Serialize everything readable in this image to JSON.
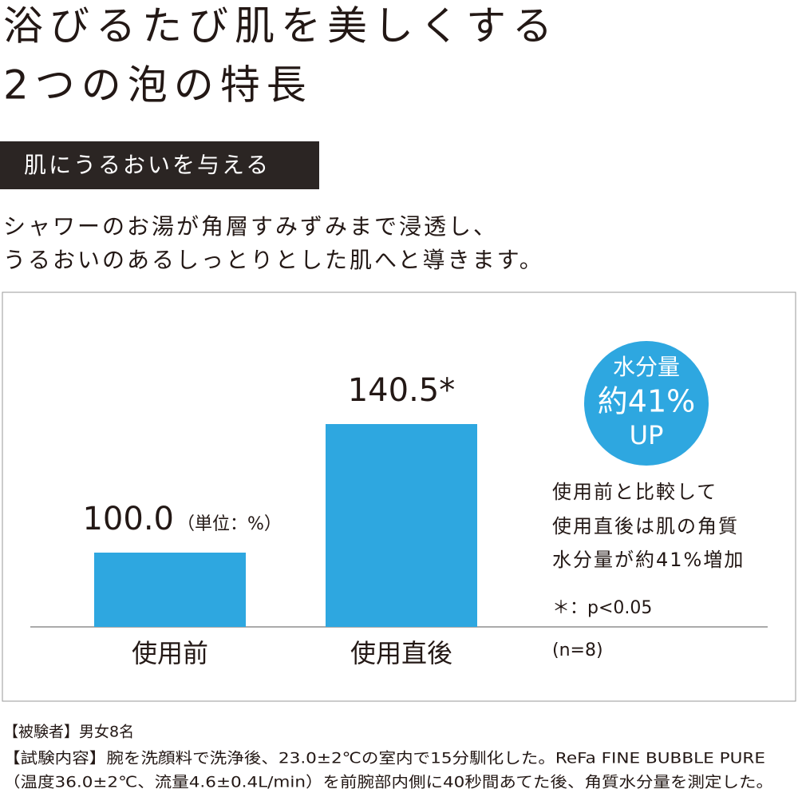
{
  "header": {
    "title_lines": [
      "浴びるたび肌を美しくする",
      "2つの泡の特長"
    ],
    "badge": "肌にうるおいを与える",
    "lead_lines": [
      "シャワーのお湯が角層すみずみまで浸透し、",
      "うるおいのあるしっとりとした肌へと導きます。"
    ]
  },
  "chart_data": {
    "type": "bar",
    "categories": [
      "使用前",
      "使用直後"
    ],
    "values": [
      100.0,
      140.5
    ],
    "value_labels": [
      "100.0",
      "140.5*"
    ],
    "unit_label": "（単位：%）",
    "color": "#2ea7e0",
    "ylim": [
      76.6,
      160
    ],
    "badge_lines": [
      "水分量",
      "約41%",
      "UP"
    ],
    "note_lines": [
      "使用前と比較して",
      "使用直後は肌の角質",
      "水分量が約41%増加"
    ],
    "significance": "＊：p<0.05",
    "sample": "(n=8)"
  },
  "footer": {
    "lines": [
      "【被験者】男女8名",
      "【試験内容】腕を洗顔料で洗浄後、23.0±2℃の室内で15分馴化した。ReFa FINE BUBBLE PURE",
      "（温度36.0±2℃、流量4.6±0.4L/min）を前腕部内側に40秒間あてた後、角質水分量を測定した。"
    ]
  }
}
